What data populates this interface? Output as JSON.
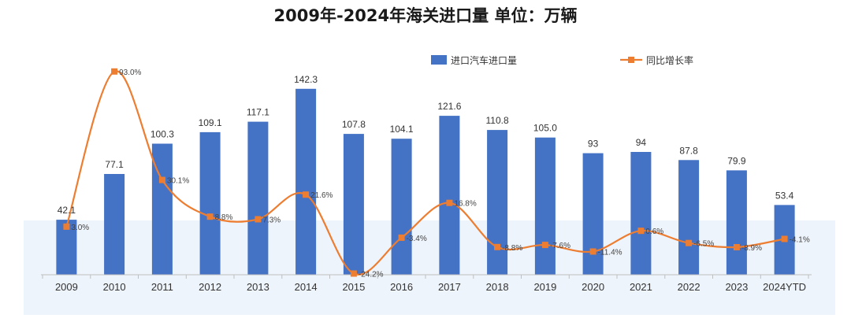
{
  "title": "2009年-2024年海关进口量  单位：万辆",
  "colors": {
    "bar": "#4472C4",
    "line": "#ED7D31",
    "marker": "#ED7D31"
  },
  "chart_data": {
    "type": "bar",
    "title": "2009年-2024年海关进口量  单位：万辆",
    "categories": [
      "2009",
      "2010",
      "2011",
      "2012",
      "2013",
      "2014",
      "2015",
      "2016",
      "2017",
      "2018",
      "2019",
      "2020",
      "2021",
      "2022",
      "2023",
      "2024YTD"
    ],
    "series": [
      {
        "name": "进口汽车进口量",
        "type": "bar",
        "values": [
          42.1,
          77.1,
          100.3,
          109.1,
          117.1,
          142.3,
          107.8,
          104.1,
          121.6,
          110.8,
          105.0,
          93,
          94,
          87.8,
          79.9,
          53.4
        ],
        "labels": [
          "42.1",
          "77.1",
          "100.3",
          "109.1",
          "117.1",
          "142.3",
          "107.8",
          "104.1",
          "121.6",
          "110.8",
          "105.0",
          "93",
          "94",
          "87.8",
          "79.9",
          "53.4"
        ]
      },
      {
        "name": "同比增长率",
        "type": "line",
        "values": [
          3.0,
          93.0,
          30.1,
          8.8,
          7.3,
          21.6,
          -24.2,
          -3.4,
          16.8,
          -8.8,
          -7.6,
          -11.4,
          0.6,
          -6.5,
          -8.9,
          -4.1
        ],
        "labels": [
          "3.0%",
          "93.0%",
          "30.1%",
          "8.8%",
          "7.3%",
          "21.6%",
          "-24.2%",
          "-3.4%",
          "16.8%",
          "-8.8%",
          "-7.6%",
          "-11.4%",
          "0.6%",
          "-6.5%",
          "-8.9%",
          "-4.1%"
        ]
      }
    ],
    "legend": {
      "position": "top-right",
      "entries": [
        "进口汽车进口量",
        "同比增长率"
      ]
    },
    "ylim": [
      0,
      150
    ],
    "y2lim": [
      -40,
      110
    ],
    "grid": false
  }
}
